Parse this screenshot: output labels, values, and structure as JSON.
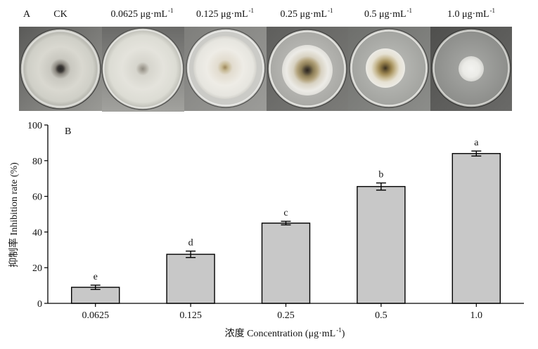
{
  "panel_a": {
    "label": "A",
    "treatments": [
      {
        "text": "CK"
      },
      {
        "text": "0.0625 μg·mL",
        "sup": "-1"
      },
      {
        "text": "0.125 μg·mL",
        "sup": "-1"
      },
      {
        "text": "0.25 μg·mL",
        "sup": "-1"
      },
      {
        "text": "0.5 μg·mL",
        "sup": "-1"
      },
      {
        "text": "1.0 μg·mL",
        "sup": "-1"
      }
    ]
  },
  "chart_data": {
    "type": "bar",
    "panel_label": "B",
    "categories": [
      "0.0625",
      "0.125",
      "0.25",
      "0.5",
      "1.0"
    ],
    "values": [
      9,
      27.5,
      45,
      65.5,
      84
    ],
    "errors": [
      1.2,
      1.8,
      1.0,
      2.0,
      1.4
    ],
    "significance_letters": [
      "e",
      "d",
      "c",
      "b",
      "a"
    ],
    "xlabel": {
      "text": "浓度 Concentration (μg·mL",
      "sup": "-1",
      "tail": ")"
    },
    "ylabel": "抑制率 Inhibition rate (%)",
    "ylim": [
      0,
      100
    ],
    "yticks": [
      0,
      20,
      40,
      60,
      80,
      100
    ],
    "grid": false,
    "colors": {
      "bar_fill": "#c8c8c8",
      "bar_stroke": "#000000",
      "ylabel": "#44648f"
    }
  }
}
